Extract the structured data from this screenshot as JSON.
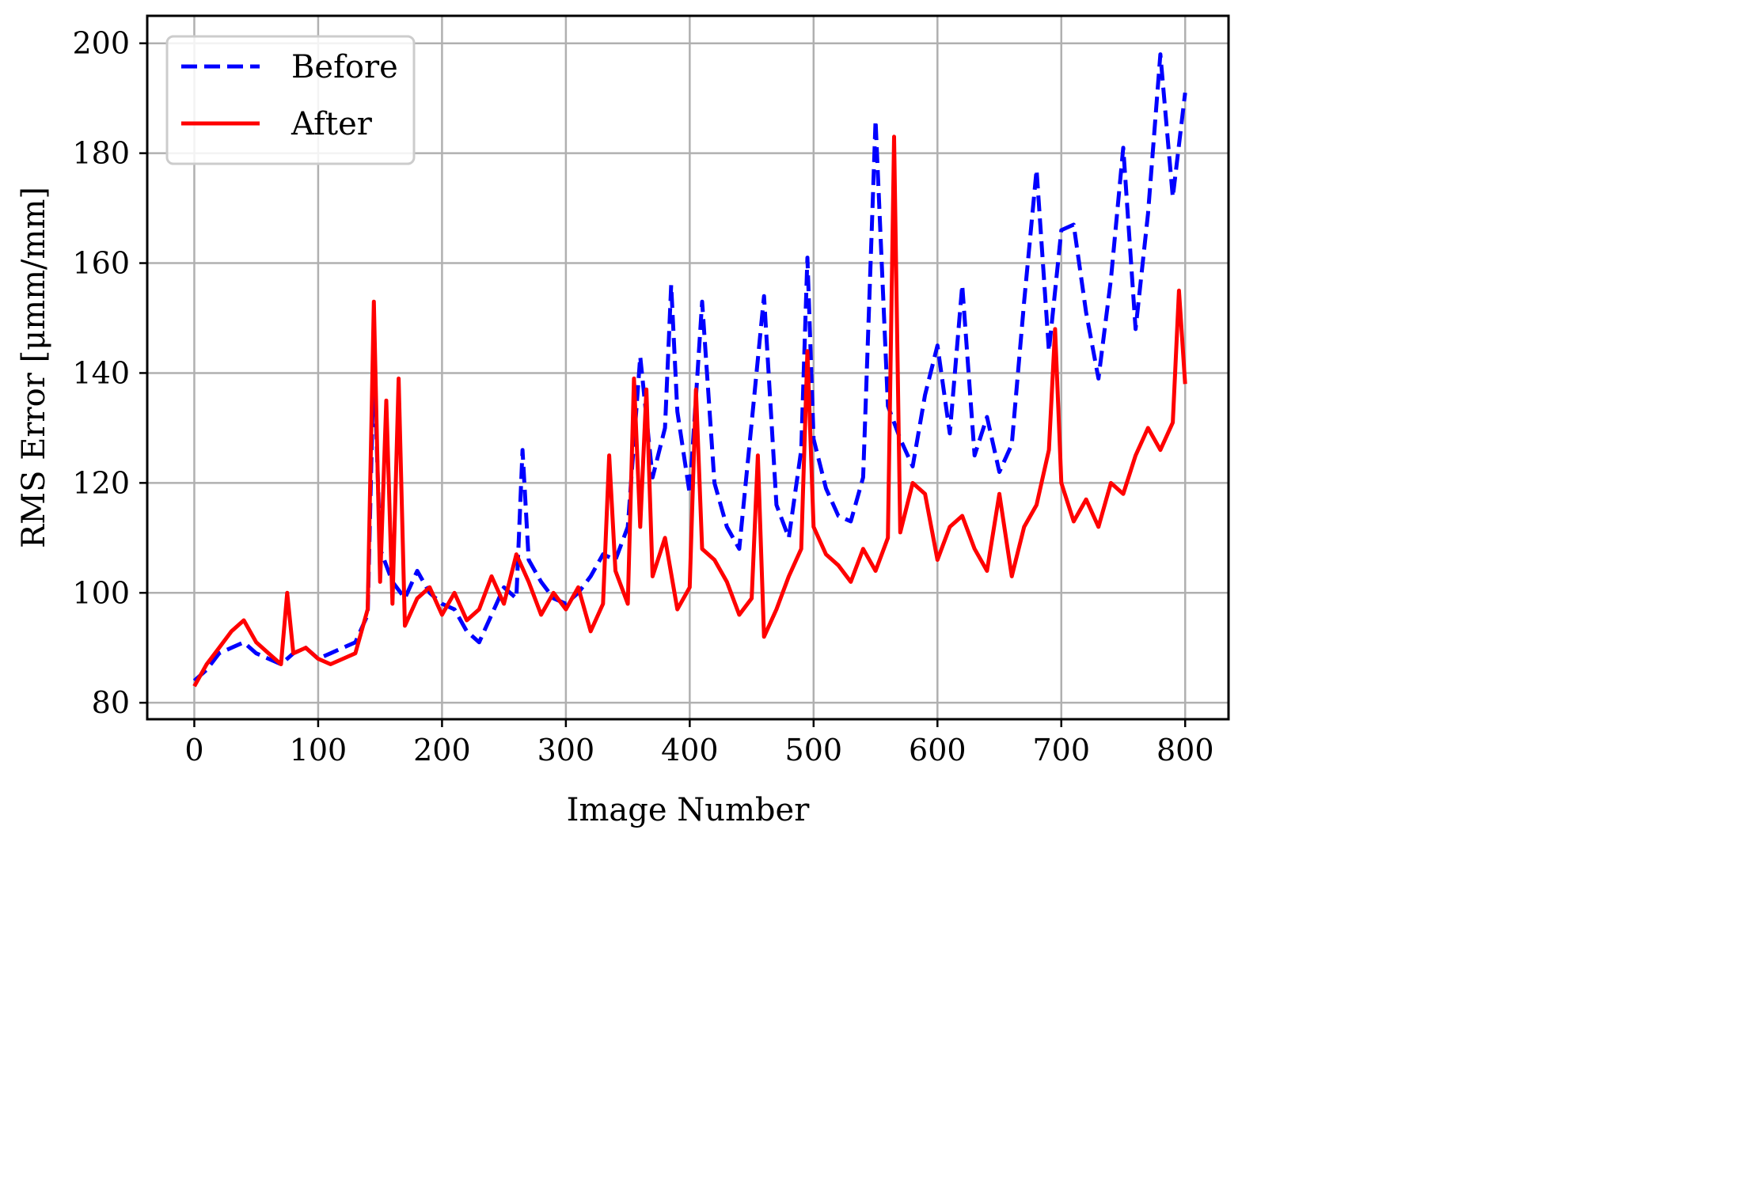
{
  "chart_data": {
    "type": "line",
    "xlabel": "Image Number",
    "ylabel": "RMS Error [μmm/mm]",
    "xlim": [
      -38,
      835
    ],
    "ylim": [
      77,
      205
    ],
    "xticks": [
      0,
      100,
      200,
      300,
      400,
      500,
      600,
      700,
      800
    ],
    "yticks": [
      80,
      100,
      120,
      140,
      160,
      180,
      200
    ],
    "grid": true,
    "legend_position": "top-left",
    "series": [
      {
        "name": "Before",
        "color": "#0000ff",
        "style": "dashed",
        "x": [
          0,
          10,
          20,
          30,
          40,
          50,
          60,
          70,
          80,
          90,
          100,
          110,
          120,
          130,
          140,
          145,
          150,
          160,
          170,
          180,
          190,
          200,
          210,
          220,
          230,
          240,
          250,
          260,
          265,
          270,
          280,
          290,
          300,
          310,
          320,
          330,
          340,
          350,
          360,
          370,
          380,
          385,
          390,
          400,
          410,
          420,
          430,
          440,
          450,
          460,
          470,
          480,
          490,
          495,
          500,
          510,
          520,
          530,
          540,
          550,
          560,
          570,
          580,
          590,
          600,
          610,
          620,
          630,
          640,
          650,
          660,
          670,
          680,
          690,
          700,
          710,
          720,
          730,
          740,
          750,
          760,
          770,
          780,
          790,
          800
        ],
        "y": [
          84,
          86,
          89,
          90,
          91,
          89,
          88,
          87,
          89,
          90,
          88,
          89,
          90,
          91,
          96,
          143,
          108,
          102,
          99,
          104,
          100,
          98,
          97,
          93,
          91,
          96,
          101,
          99,
          126,
          106,
          102,
          99,
          98,
          100,
          103,
          107,
          106,
          112,
          143,
          121,
          130,
          156,
          133,
          118,
          153,
          120,
          112,
          108,
          131,
          154,
          116,
          110,
          126,
          161,
          128,
          119,
          114,
          113,
          121,
          186,
          134,
          128,
          123,
          136,
          145,
          129,
          156,
          125,
          132,
          122,
          127,
          153,
          177,
          144,
          166,
          167,
          151,
          139,
          157,
          181,
          148,
          169,
          198,
          172,
          191
        ]
      },
      {
        "name": "After",
        "color": "#ff0000",
        "style": "solid",
        "x": [
          0,
          10,
          20,
          30,
          40,
          50,
          60,
          70,
          75,
          80,
          90,
          100,
          110,
          120,
          130,
          140,
          145,
          150,
          155,
          160,
          165,
          170,
          180,
          190,
          200,
          210,
          220,
          230,
          240,
          250,
          260,
          270,
          280,
          290,
          300,
          310,
          320,
          330,
          335,
          340,
          350,
          355,
          360,
          365,
          370,
          380,
          390,
          400,
          405,
          410,
          420,
          430,
          440,
          450,
          455,
          460,
          470,
          480,
          490,
          495,
          500,
          510,
          520,
          530,
          540,
          550,
          560,
          565,
          570,
          580,
          590,
          600,
          610,
          620,
          630,
          640,
          650,
          660,
          670,
          680,
          690,
          695,
          700,
          710,
          720,
          730,
          740,
          750,
          760,
          770,
          780,
          790,
          795,
          800
        ],
        "y": [
          83,
          87,
          90,
          93,
          95,
          91,
          89,
          87,
          100,
          89,
          90,
          88,
          87,
          88,
          89,
          97,
          153,
          102,
          135,
          98,
          139,
          94,
          99,
          101,
          96,
          100,
          95,
          97,
          103,
          98,
          107,
          102,
          96,
          100,
          97,
          101,
          93,
          98,
          125,
          104,
          98,
          139,
          112,
          137,
          103,
          110,
          97,
          101,
          137,
          108,
          106,
          102,
          96,
          99,
          125,
          92,
          97,
          103,
          108,
          144,
          112,
          107,
          105,
          102,
          108,
          104,
          110,
          183,
          111,
          120,
          118,
          106,
          112,
          114,
          108,
          104,
          118,
          103,
          112,
          116,
          126,
          148,
          120,
          113,
          117,
          112,
          120,
          118,
          125,
          130,
          126,
          131,
          155,
          138
        ]
      }
    ]
  }
}
